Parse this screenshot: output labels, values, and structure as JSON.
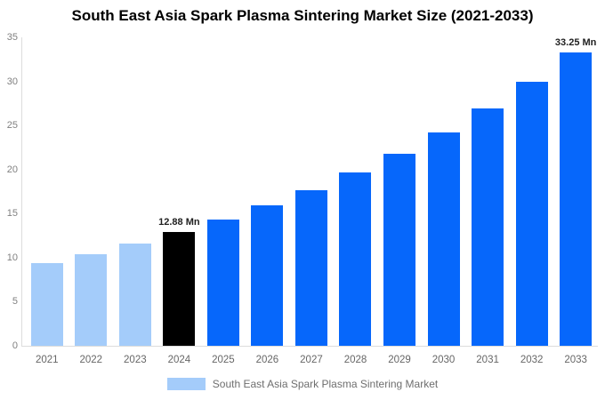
{
  "title": "South East Asia Spark Plasma Sintering Market Size (2021-2033)",
  "chart_data": {
    "type": "bar",
    "title": "South East Asia Spark Plasma Sintering Market Size (2021-2033)",
    "categories": [
      "2021",
      "2022",
      "2023",
      "2024",
      "2025",
      "2026",
      "2027",
      "2028",
      "2029",
      "2030",
      "2031",
      "2032",
      "2033"
    ],
    "values": [
      9.39,
      10.43,
      11.59,
      12.88,
      14.31,
      15.9,
      17.67,
      19.63,
      21.81,
      24.24,
      26.93,
      29.92,
      33.25
    ],
    "unit": "Mn",
    "bar_colors": [
      "#A4CCFA",
      "#A4CCFA",
      "#A4CCFA",
      "#000000",
      "#0667FB",
      "#0667FB",
      "#0667FB",
      "#0667FB",
      "#0667FB",
      "#0667FB",
      "#0667FB",
      "#0667FB",
      "#0667FB"
    ],
    "annotations": [
      {
        "category": "2024",
        "text": "12.88 Mn"
      },
      {
        "category": "2033",
        "text": "33.25 Mn"
      }
    ],
    "xlabel": "",
    "ylabel": "",
    "ylim": [
      0,
      35
    ],
    "yticks": [
      "0",
      "5",
      "10",
      "15",
      "20",
      "25",
      "30",
      "35"
    ],
    "grid": false,
    "legend": {
      "position": "bottom",
      "entries": [
        {
          "label": "South East Asia Spark Plasma Sintering Market",
          "color": "#A4CCFA"
        }
      ]
    }
  },
  "colors": {
    "historical_bar": "#A4CCFA",
    "base_year_bar": "#000000",
    "forecast_bar": "#0667FB",
    "axis_line": "#DCDCDC",
    "tick_text": "#808080",
    "category_text": "#666666",
    "legend_text": "#6E6E6E",
    "annotation_text": "#1F1F1F",
    "background": "#FFFFFF"
  }
}
